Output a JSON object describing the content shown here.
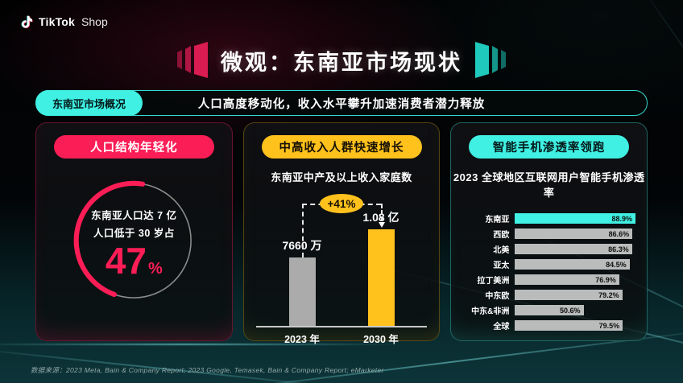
{
  "brand": {
    "name": "TikTok",
    "suffix": "Shop"
  },
  "slide_title": "微观：东南亚市场现状",
  "overview_bar": {
    "tag": "东南亚市场概况",
    "headline": "人口高度移动化，收入水平攀升加速消费者潜力释放"
  },
  "colors": {
    "pink": "#fb1d56",
    "yellow": "#ffc11c",
    "cyan": "#3ff0e3",
    "bar_gray": "#ababab",
    "hbar_gray": "#b9bcbb",
    "donut_track": "#9b9b9b"
  },
  "chart_data": [
    {
      "type": "donut",
      "title": "人口结构年轻化",
      "center_lines": [
        "东南亚人口达 7 亿",
        "人口低于 30 岁占"
      ],
      "value": 47,
      "value_label": "47",
      "unit": "%",
      "accent": "#fb1d56",
      "track_color": "#9b9b9b"
    },
    {
      "type": "bar",
      "title": "中高收入人群快速增长",
      "subtitle": "东南亚中产及以上收入家庭数",
      "categories": [
        "2023 年",
        "2030 年"
      ],
      "values": [
        7660,
        10800
      ],
      "value_labels": [
        "7660 万",
        "1.08 亿"
      ],
      "growth_label": "+41%",
      "bar_colors": [
        "#ababab",
        "#ffc11c"
      ]
    },
    {
      "type": "bar-horizontal",
      "title": "智能手机渗透率领跑",
      "subtitle": "2023 全球地区互联网用户智能手机渗透率",
      "categories": [
        "东南亚",
        "西欧",
        "北美",
        "亚太",
        "拉丁美洲",
        "中东欧",
        "中东&非洲",
        "全球"
      ],
      "values": [
        88.9,
        86.6,
        86.3,
        84.5,
        76.9,
        79.2,
        50.6,
        79.5
      ],
      "value_labels": [
        "88.9%",
        "86.6%",
        "86.3%",
        "84.5%",
        "76.9%",
        "79.2%",
        "50.6%",
        "79.5%"
      ],
      "highlight_index": 0,
      "highlight_color": "#3ff0e3",
      "bar_color": "#b9bcbb",
      "xlim": [
        0,
        100
      ]
    }
  ],
  "footer": {
    "source": "数据来源：2023 Meta, Bain & Company Report; 2023 Google, Temasek, Bain & Company Report; eMarketer"
  }
}
